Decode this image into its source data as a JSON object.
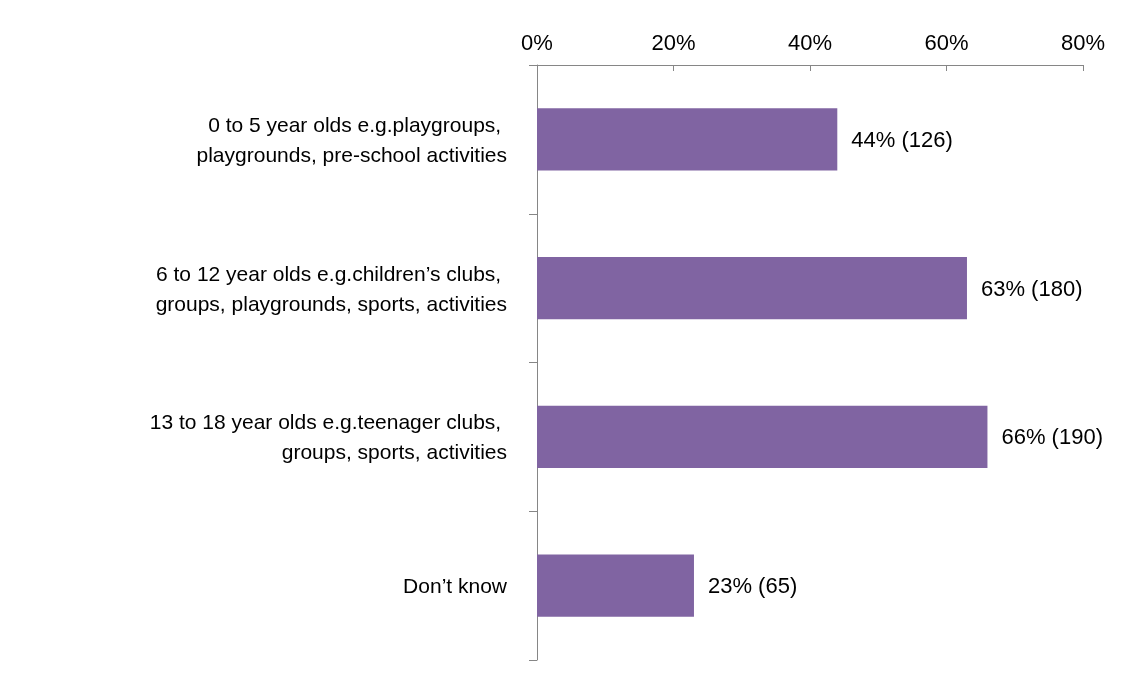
{
  "chart_data": {
    "type": "bar",
    "orientation": "horizontal",
    "categories": [
      "0 to 5 year olds e.g.playgroups, playgrounds, pre-school activities",
      "6 to 12 year olds e.g.children’s clubs, groups, playgrounds, sports, activities",
      "13 to 18 year olds e.g.teenager clubs, groups, sports, activities",
      "Don’t know"
    ],
    "values": [
      44,
      63,
      66,
      23
    ],
    "value_labels": [
      "44% (126)",
      "63% (180)",
      "66% (190)",
      "23% (65)"
    ],
    "color": "#8064a2",
    "xlim": [
      0,
      80
    ],
    "xticks": [
      {
        "value": 0,
        "label": "0%"
      },
      {
        "value": 20,
        "label": "20%"
      },
      {
        "value": 40,
        "label": "40%"
      },
      {
        "value": 60,
        "label": "60%"
      },
      {
        "value": 80,
        "label": "80%"
      }
    ],
    "grid": false
  }
}
